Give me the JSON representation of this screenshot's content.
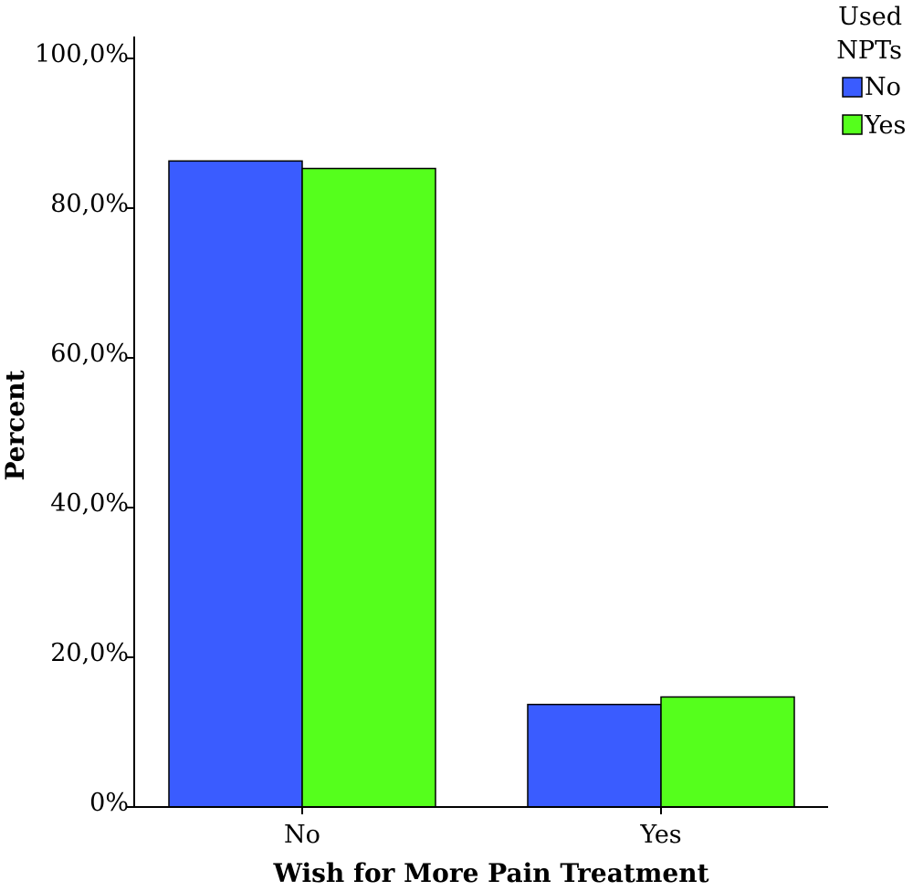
{
  "chart_data": {
    "type": "bar",
    "categories": [
      "No",
      "Yes"
    ],
    "series": [
      {
        "name": "No",
        "values": [
          86.3,
          13.7
        ],
        "color": "#3a5cff"
      },
      {
        "name": "Yes",
        "values": [
          85.3,
          14.7
        ],
        "color": "#55ff1c"
      }
    ],
    "xlabel": "Wish for More Pain Treatment",
    "ylabel": "Percent",
    "ylim": [
      0,
      100
    ],
    "yticks": [
      {
        "value": 0,
        "label": "0%"
      },
      {
        "value": 20,
        "label": "20,0%"
      },
      {
        "value": 40,
        "label": "40,0%"
      },
      {
        "value": 60,
        "label": "60,0%"
      },
      {
        "value": 80,
        "label": "80,0%"
      },
      {
        "value": 100,
        "label": "100,0%"
      }
    ],
    "legend": {
      "title_lines": [
        "Used",
        "NPTs"
      ],
      "position": "top-right"
    },
    "grid": false
  }
}
